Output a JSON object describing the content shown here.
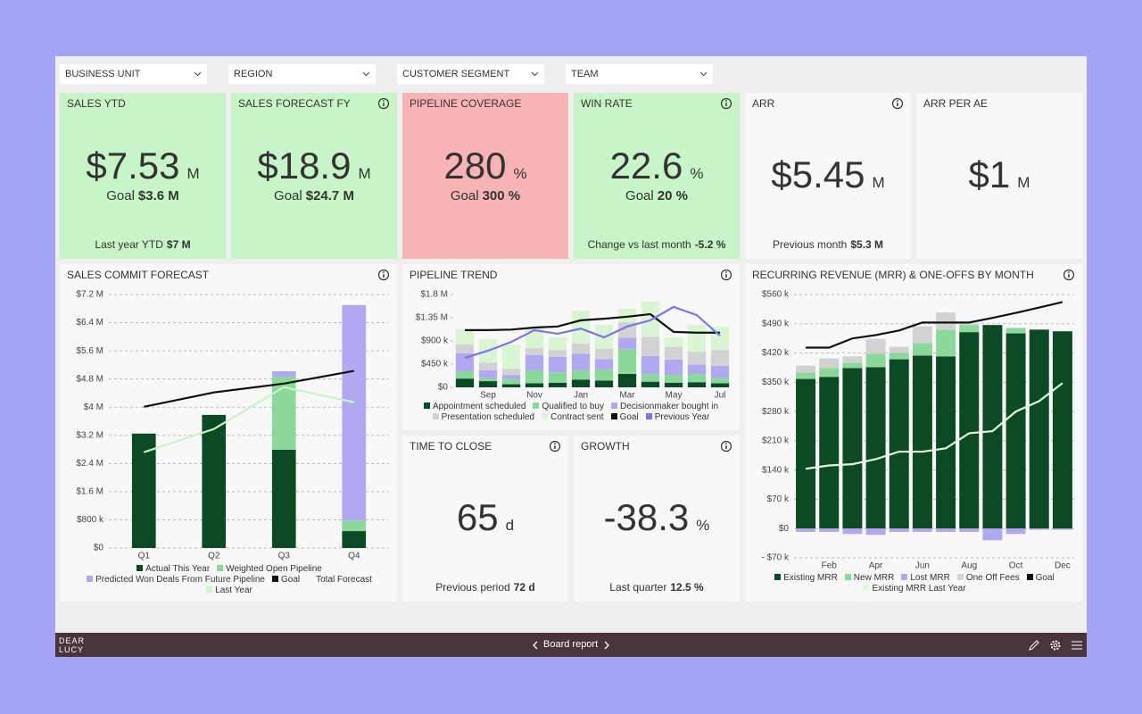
{
  "filters": [
    "BUSINESS UNIT",
    "REGION",
    "CUSTOMER SEGMENT",
    "TEAM"
  ],
  "kpis": [
    {
      "title": "SALES YTD",
      "value": "$7.53",
      "unit": "M",
      "goal_label": "Goal",
      "goal": "$3.6 M",
      "footer_label": "Last year YTD",
      "footer_value": "$7 M",
      "color": "#c8f5c8",
      "info": false
    },
    {
      "title": "SALES FORECAST FY",
      "value": "$18.9",
      "unit": "M",
      "goal_label": "Goal",
      "goal": "$24.7 M",
      "color": "#c8f5c8",
      "info": true
    },
    {
      "title": "PIPELINE COVERAGE",
      "value": "280",
      "unit": "%",
      "goal_label": "Goal",
      "goal": "300 %",
      "color": "#f8b4b4",
      "info": false
    },
    {
      "title": "WIN RATE",
      "value": "22.6",
      "unit": "%",
      "goal_label": "Goal",
      "goal": "20 %",
      "footer_label": "Change vs last month",
      "footer_value": "-5.2 %",
      "color": "#c8f5c8",
      "info": true
    },
    {
      "title": "ARR",
      "value": "$5.45",
      "unit": "M",
      "footer_label": "Previous month",
      "footer_value": "$5.3 M",
      "color": "#f8f8f8",
      "info": true
    },
    {
      "title": "ARR PER AE",
      "value": "$1",
      "unit": "M",
      "color": "#f8f8f8",
      "info": false
    },
    {
      "title": "TIME TO CLOSE",
      "value": "65",
      "unit": "d",
      "footer_label": "Previous period",
      "footer_value": "72 d",
      "color": "#f8f8f8",
      "info": true
    },
    {
      "title": "GROWTH",
      "value": "-38.3",
      "unit": "%",
      "footer_label": "Last quarter",
      "footer_value": "12.5 %",
      "color": "#f8f8f8",
      "info": true
    }
  ],
  "chart_data": [
    {
      "type": "bar",
      "stacked": true,
      "title": "SALES COMMIT FORECAST",
      "info": true,
      "grid": true,
      "categories": [
        "Q1",
        "Q2",
        "Q3",
        "Q4"
      ],
      "ylim": [
        0,
        7200000
      ],
      "yticks": [
        {
          "value": 0,
          "label": "$0"
        },
        {
          "value": 800000,
          "label": "$800 k"
        },
        {
          "value": 1600000,
          "label": "$1.6 M"
        },
        {
          "value": 2400000,
          "label": "$2.4 M"
        },
        {
          "value": 3200000,
          "label": "$3.2 M"
        },
        {
          "value": 4000000,
          "label": "$4 M"
        },
        {
          "value": 4800000,
          "label": "$4.8 M"
        },
        {
          "value": 5600000,
          "label": "$5.6 M"
        },
        {
          "value": 6400000,
          "label": "$6.4 M"
        },
        {
          "value": 7200000,
          "label": "$7.2 M"
        }
      ],
      "series": [
        {
          "name": "Actual This Year",
          "type": "bar",
          "color": "#0b4a24",
          "values": [
            3250000,
            3780000,
            2790000,
            480000
          ]
        },
        {
          "name": "Weighted Open Pipeline",
          "type": "bar",
          "color": "#8ad99a",
          "values": [
            0,
            0,
            2080000,
            300000
          ]
        },
        {
          "name": "Predicted Won Deals From Future Pipeline",
          "type": "bar",
          "color": "#b0a8f0",
          "values": [
            0,
            0,
            150000,
            6120000
          ]
        },
        {
          "name": "Goal",
          "type": "line",
          "color": "#111111",
          "values": [
            4010000,
            4420000,
            4670000,
            5030000
          ]
        },
        {
          "name": "Total Forecast",
          "type": "line",
          "color": "transparent",
          "values": [
            null,
            null,
            null,
            null
          ]
        },
        {
          "name": "Last Year",
          "type": "line",
          "color": "#c8f5c8",
          "values": [
            2720000,
            3380000,
            4570000,
            4140000
          ]
        }
      ]
    },
    {
      "type": "bar",
      "stacked": true,
      "title": "PIPELINE TREND",
      "info": true,
      "grid": false,
      "categories": [
        null,
        "Sep",
        null,
        "Nov",
        null,
        "Jan",
        null,
        "Mar",
        null,
        "May",
        null,
        "Jul"
      ],
      "ylim": [
        0,
        1800000
      ],
      "yticks": [
        {
          "value": 0,
          "label": "$0"
        },
        {
          "value": 450000,
          "label": "$450 k"
        },
        {
          "value": 900000,
          "label": "$900 k"
        },
        {
          "value": 1350000,
          "label": "$1.35 M"
        },
        {
          "value": 1800000,
          "label": "$1.8 M"
        }
      ],
      "series": [
        {
          "name": "Appointment scheduled",
          "type": "bar",
          "color": "#0b4a24",
          "values": [
            170000,
            120000,
            60000,
            80000,
            90000,
            150000,
            130000,
            260000,
            110000,
            90000,
            100000,
            80000
          ]
        },
        {
          "name": "Qualified to buy",
          "type": "bar",
          "color": "#8ad99a",
          "values": [
            140000,
            60000,
            100000,
            250000,
            200000,
            180000,
            220000,
            480000,
            150000,
            150000,
            160000,
            100000
          ]
        },
        {
          "name": "Decisionmaker bought in",
          "type": "bar",
          "color": "#b0a8f0",
          "values": [
            350000,
            150000,
            80000,
            300000,
            300000,
            320000,
            200000,
            220000,
            350000,
            300000,
            180000,
            240000
          ]
        },
        {
          "name": "Presentation scheduled",
          "type": "bar",
          "color": "#d2d2d2",
          "values": [
            170000,
            150000,
            120000,
            130000,
            130000,
            200000,
            200000,
            300000,
            370000,
            250000,
            250000,
            300000
          ]
        },
        {
          "name": "Contract sent",
          "type": "bar",
          "color": "#d9f5d2",
          "values": [
            300000,
            450000,
            470000,
            400000,
            250000,
            640000,
            460000,
            260000,
            680000,
            180000,
            520000,
            460000
          ]
        },
        {
          "name": "Goal",
          "type": "line",
          "color": "#111111",
          "values": [
            1110000,
            1110000,
            1120000,
            1160000,
            1180000,
            1300000,
            1330000,
            1370000,
            1420000,
            1075000,
            1060000,
            1060000
          ]
        },
        {
          "name": "Previous Year",
          "type": "line",
          "color": "#7f72ee",
          "values": [
            570000,
            710000,
            880000,
            1110000,
            1040000,
            1140000,
            970000,
            1180000,
            1300000,
            1560000,
            1400000,
            1000000
          ]
        }
      ]
    },
    {
      "type": "bar",
      "stacked": true,
      "title": "RECURRING REVENUE (MRR) & ONE-OFFS BY MONTH",
      "info": true,
      "grid": true,
      "categories": [
        null,
        "Feb",
        null,
        "Apr",
        null,
        "Jun",
        null,
        "Aug",
        null,
        "Oct",
        null,
        "Dec"
      ],
      "ylim": [
        -70000,
        560000
      ],
      "yticks": [
        {
          "value": -70000,
          "label": "- $70 k"
        },
        {
          "value": 0,
          "label": "$0"
        },
        {
          "value": 70000,
          "label": "$70 k"
        },
        {
          "value": 140000,
          "label": "$140 k"
        },
        {
          "value": 210000,
          "label": "$210 k"
        },
        {
          "value": 280000,
          "label": "$280 k"
        },
        {
          "value": 350000,
          "label": "$350 k"
        },
        {
          "value": 420000,
          "label": "$420 k"
        },
        {
          "value": 490000,
          "label": "$490 k"
        },
        {
          "value": 560000,
          "label": "$560 k"
        }
      ],
      "series": [
        {
          "name": "Existing MRR",
          "type": "bar",
          "color": "#0b4a24",
          "values": [
            358000,
            363000,
            384000,
            386000,
            405000,
            414000,
            412000,
            470000,
            487000,
            467000,
            476000,
            472000
          ]
        },
        {
          "name": "New MRR",
          "type": "bar",
          "color": "#8ad99a",
          "values": [
            15000,
            21000,
            13000,
            32000,
            15000,
            30000,
            64000,
            17000,
            0,
            13000,
            0,
            0
          ]
        },
        {
          "name": "Lost MRR",
          "type": "bar",
          "color": "#b0a8f0",
          "values": [
            -8000,
            -8000,
            -13000,
            -15000,
            -8000,
            -8000,
            -8000,
            -8000,
            -28000,
            -13000,
            -3000,
            -3000
          ]
        },
        {
          "name": "One Off Fees",
          "type": "bar",
          "color": "#d2d2d2",
          "values": [
            17000,
            23000,
            15000,
            36000,
            15000,
            40000,
            41000,
            4000,
            0,
            0,
            0,
            0
          ]
        },
        {
          "name": "Goal",
          "type": "line",
          "color": "#111111",
          "values": [
            433000,
            433000,
            455000,
            463000,
            474000,
            493000,
            493000,
            493000,
            504000,
            516000,
            529000,
            542000
          ]
        },
        {
          "name": "Existing MRR Last Year",
          "type": "line",
          "color": "#e4f7dc",
          "values": [
            143000,
            151000,
            154000,
            166000,
            184000,
            184000,
            192000,
            228000,
            233000,
            280000,
            305000,
            348000
          ]
        }
      ]
    }
  ],
  "footer": {
    "logo": [
      "DEAR",
      "LUCY"
    ],
    "page": "Board report"
  }
}
